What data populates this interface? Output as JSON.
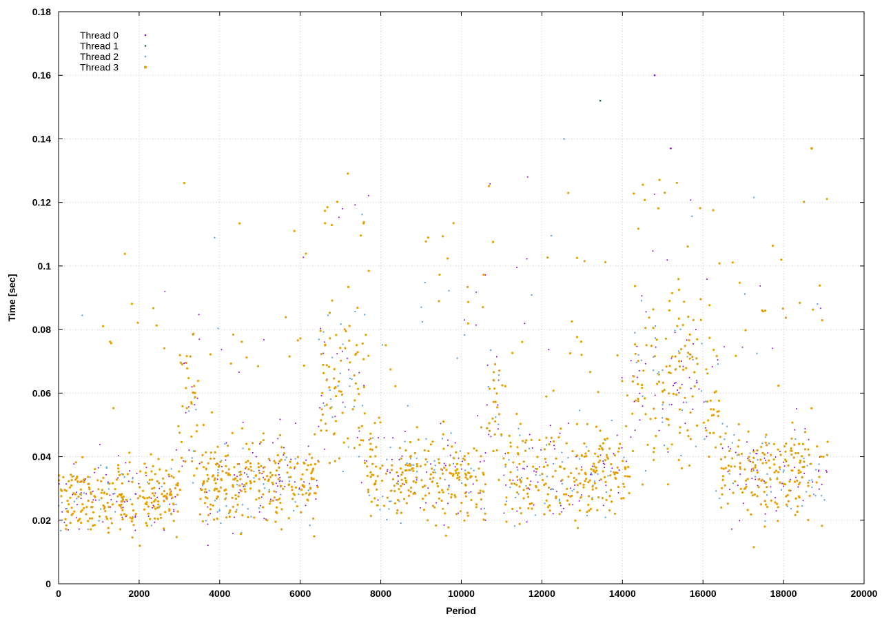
{
  "chart_data": {
    "type": "scatter",
    "title": "",
    "xlabel": "Period",
    "ylabel": "Time [sec]",
    "xlim": [
      0,
      20000
    ],
    "ylim": [
      0,
      0.18
    ],
    "x_ticks": [
      "0",
      "2000",
      "4000",
      "6000",
      "8000",
      "10000",
      "12000",
      "14000",
      "16000",
      "18000",
      "20000"
    ],
    "y_ticks": [
      "0",
      "0.02",
      "0.04",
      "0.06",
      "0.08",
      "0.1",
      "0.12",
      "0.14",
      "0.16",
      "0.18"
    ],
    "grid": true,
    "legend_position": "top-left",
    "x_max_period": 19100,
    "series": [
      {
        "name": "Thread 0",
        "color": "#9400d3",
        "marker": "dot"
      },
      {
        "name": "Thread 1",
        "color": "#006a6a",
        "marker": "dot"
      },
      {
        "name": "Thread 2",
        "color": "#56b4e9",
        "marker": "dot"
      },
      {
        "name": "Thread 3",
        "color": "#e69f00",
        "marker": "dot"
      }
    ],
    "regime_means": [
      {
        "x": [
          0,
          3000
        ],
        "mean_time": 0.027
      },
      {
        "x": [
          3000,
          3500
        ],
        "mean_time": 0.055
      },
      {
        "x": [
          3500,
          6450
        ],
        "mean_time": 0.032
      },
      {
        "x": [
          6450,
          7600
        ],
        "mean_time": 0.063
      },
      {
        "x": [
          7600,
          10600
        ],
        "mean_time": 0.034
      },
      {
        "x": [
          10600,
          11050
        ],
        "mean_time": 0.058
      },
      {
        "x": [
          11050,
          14200
        ],
        "mean_time": 0.034
      },
      {
        "x": [
          14200,
          16400
        ],
        "mean_time": 0.066
      },
      {
        "x": [
          16400,
          19100
        ],
        "mean_time": 0.035
      }
    ],
    "notable_maxima": [
      {
        "x": 14800,
        "y": 0.16
      },
      {
        "x": 13450,
        "y": 0.152
      },
      {
        "x": 12550,
        "y": 0.14
      },
      {
        "x": 18700,
        "y": 0.137
      },
      {
        "x": 15200,
        "y": 0.137
      }
    ]
  }
}
